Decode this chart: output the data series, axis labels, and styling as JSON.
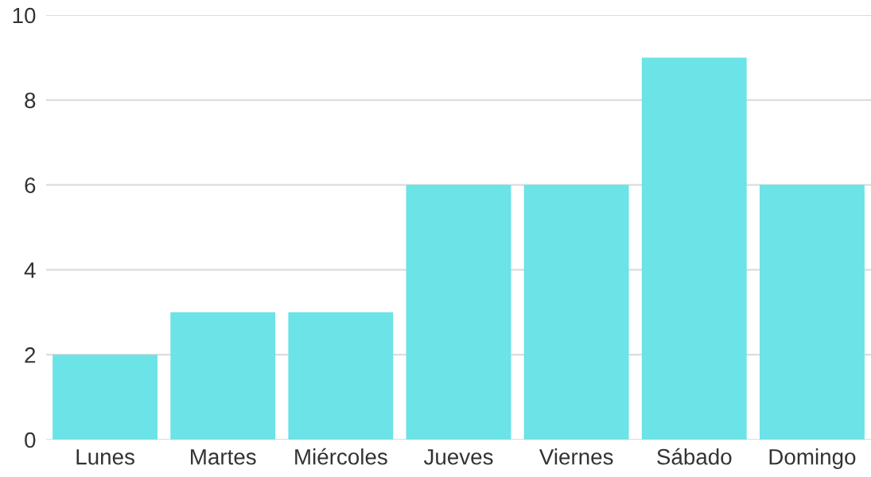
{
  "chart_data": {
    "type": "bar",
    "categories": [
      "Lunes",
      "Martes",
      "Miércoles",
      "Jueves",
      "Viernes",
      "Sábado",
      "Domingo"
    ],
    "values": [
      2,
      3,
      3,
      6,
      6,
      9,
      6
    ],
    "color": "#6be3e7",
    "ylim": [
      0,
      10
    ],
    "yticks": [
      0,
      2,
      4,
      6,
      8,
      10
    ],
    "grid": "y"
  }
}
